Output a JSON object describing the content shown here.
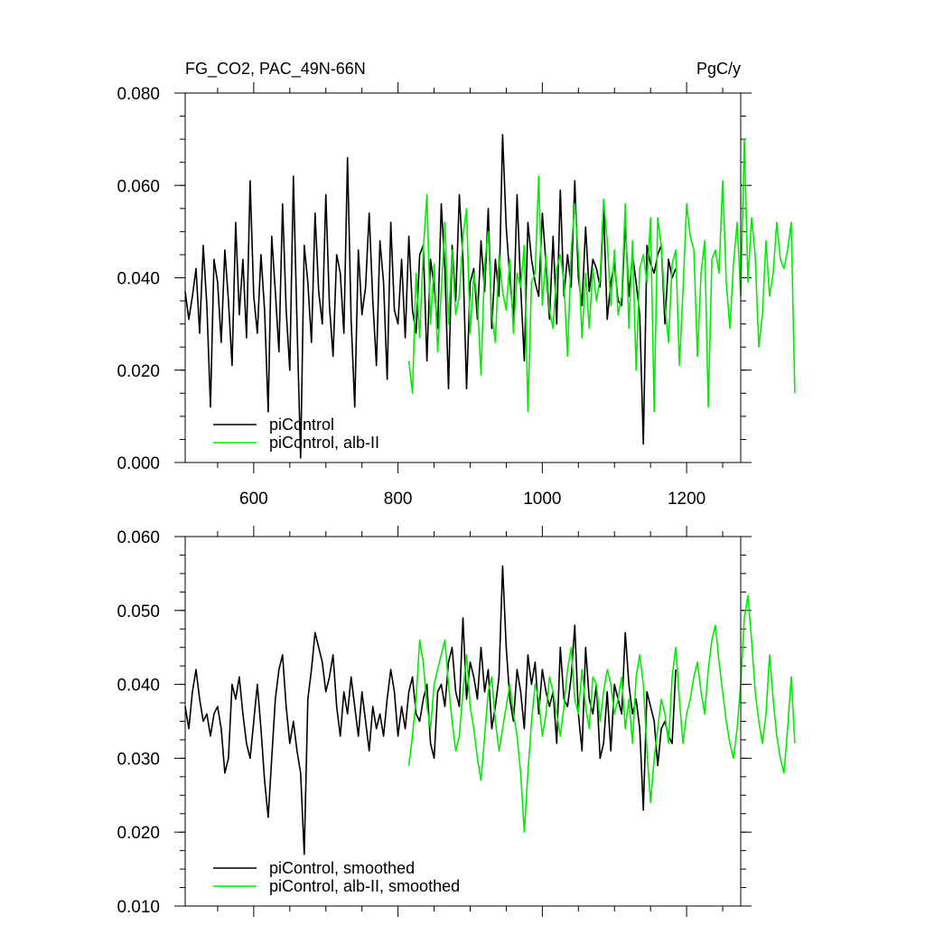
{
  "chart_data": [
    {
      "type": "line",
      "title": "FG_CO2, PAC_49N-66N",
      "units": "PgC/y",
      "xlim": [
        505,
        1275
      ],
      "ylim": [
        0.0,
        0.08
      ],
      "x_ticks": [
        600,
        800,
        1000,
        1200
      ],
      "x_tick_labels": [
        "600",
        "800",
        "1000",
        "1200"
      ],
      "y_ticks": [
        0.0,
        0.02,
        0.04,
        0.06,
        0.08
      ],
      "y_tick_labels": [
        "0.000",
        "0.020",
        "0.040",
        "0.060",
        "0.080"
      ],
      "legend_position": "bottom-left",
      "series": [
        {
          "name": "piControl",
          "color": "#000000",
          "x_start": 505,
          "x_step": 5,
          "values": [
            0.037,
            0.031,
            0.036,
            0.042,
            0.028,
            0.047,
            0.034,
            0.012,
            0.044,
            0.039,
            0.026,
            0.046,
            0.035,
            0.021,
            0.052,
            0.032,
            0.044,
            0.027,
            0.061,
            0.036,
            0.028,
            0.045,
            0.033,
            0.011,
            0.049,
            0.037,
            0.024,
            0.056,
            0.033,
            0.02,
            0.062,
            0.03,
            0.001,
            0.047,
            0.039,
            0.026,
            0.054,
            0.037,
            0.03,
            0.058,
            0.034,
            0.023,
            0.045,
            0.041,
            0.028,
            0.066,
            0.031,
            0.012,
            0.046,
            0.032,
            0.038,
            0.054,
            0.035,
            0.021,
            0.048,
            0.039,
            0.018,
            0.052,
            0.033,
            0.03,
            0.044,
            0.027,
            0.049,
            0.033,
            0.028,
            0.045,
            0.047,
            0.022,
            0.044,
            0.038,
            0.029,
            0.056,
            0.042,
            0.016,
            0.047,
            0.035,
            0.058,
            0.044,
            0.016,
            0.039,
            0.042,
            0.031,
            0.048,
            0.037,
            0.055,
            0.029,
            0.044,
            0.036,
            0.071,
            0.051,
            0.04,
            0.031,
            0.058,
            0.038,
            0.022,
            0.052,
            0.044,
            0.039,
            0.036,
            0.054,
            0.043,
            0.031,
            0.049,
            0.03,
            0.059,
            0.036,
            0.045,
            0.038,
            0.061,
            0.04,
            0.034,
            0.051,
            0.037,
            0.044,
            0.042,
            0.038,
            0.055,
            0.031,
            0.039,
            0.043,
            0.035,
            0.034,
            0.052,
            0.036,
            0.045,
            0.039,
            0.032,
            0.004,
            0.047,
            0.043,
            0.041,
            0.045,
            0.047,
            0.03,
            0.044,
            0.04,
            0.042
          ]
        },
        {
          "name": "piControl, alb-II",
          "color": "#00ee00",
          "x_start": 815,
          "x_step": 5,
          "values": [
            0.022,
            0.015,
            0.041,
            0.027,
            0.046,
            0.058,
            0.03,
            0.043,
            0.024,
            0.037,
            0.052,
            0.03,
            0.046,
            0.032,
            0.036,
            0.049,
            0.055,
            0.028,
            0.041,
            0.035,
            0.019,
            0.043,
            0.05,
            0.032,
            0.026,
            0.045,
            0.037,
            0.033,
            0.044,
            0.028,
            0.041,
            0.038,
            0.047,
            0.011,
            0.039,
            0.041,
            0.062,
            0.034,
            0.045,
            0.033,
            0.029,
            0.042,
            0.045,
            0.039,
            0.023,
            0.046,
            0.056,
            0.045,
            0.027,
            0.041,
            0.029,
            0.042,
            0.035,
            0.04,
            0.057,
            0.048,
            0.034,
            0.046,
            0.032,
            0.036,
            0.056,
            0.029,
            0.048,
            0.02,
            0.042,
            0.045,
            0.039,
            0.053,
            0.011,
            0.053,
            0.047,
            0.034,
            0.026,
            0.043,
            0.046,
            0.021,
            0.037,
            0.056,
            0.049,
            0.046,
            0.023,
            0.041,
            0.048,
            0.012,
            0.044,
            0.046,
            0.041,
            0.061,
            0.039,
            0.029,
            0.043,
            0.052,
            0.036,
            0.07,
            0.039,
            0.053,
            0.045,
            0.025,
            0.032,
            0.048,
            0.036,
            0.041,
            0.052,
            0.044,
            0.042,
            0.046,
            0.052,
            0.015
          ]
        }
      ]
    },
    {
      "type": "line",
      "title": "",
      "xlim": [
        505,
        1275
      ],
      "ylim": [
        0.01,
        0.06
      ],
      "x_ticks": [
        600,
        800,
        1000,
        1200
      ],
      "y_ticks": [
        0.01,
        0.02,
        0.03,
        0.04,
        0.05,
        0.06
      ],
      "y_tick_labels": [
        "0.010",
        "0.020",
        "0.030",
        "0.040",
        "0.050",
        "0.060"
      ],
      "legend_position": "bottom-left",
      "series": [
        {
          "name": "piControl, smoothed",
          "color": "#000000",
          "x_start": 505,
          "x_step": 5,
          "values": [
            0.037,
            0.034,
            0.039,
            0.042,
            0.038,
            0.035,
            0.036,
            0.033,
            0.036,
            0.037,
            0.034,
            0.028,
            0.03,
            0.04,
            0.038,
            0.041,
            0.036,
            0.032,
            0.03,
            0.035,
            0.04,
            0.034,
            0.027,
            0.022,
            0.03,
            0.038,
            0.042,
            0.044,
            0.037,
            0.032,
            0.035,
            0.031,
            0.028,
            0.017,
            0.038,
            0.042,
            0.047,
            0.045,
            0.043,
            0.039,
            0.041,
            0.044,
            0.037,
            0.033,
            0.039,
            0.036,
            0.041,
            0.037,
            0.033,
            0.039,
            0.035,
            0.031,
            0.037,
            0.034,
            0.036,
            0.033,
            0.038,
            0.042,
            0.039,
            0.033,
            0.037,
            0.034,
            0.039,
            0.041,
            0.036,
            0.035,
            0.038,
            0.04,
            0.032,
            0.03,
            0.039,
            0.04,
            0.037,
            0.043,
            0.045,
            0.039,
            0.037,
            0.049,
            0.038,
            0.043,
            0.041,
            0.038,
            0.045,
            0.039,
            0.042,
            0.034,
            0.037,
            0.041,
            0.056,
            0.045,
            0.038,
            0.035,
            0.042,
            0.039,
            0.034,
            0.044,
            0.04,
            0.043,
            0.036,
            0.042,
            0.039,
            0.037,
            0.039,
            0.032,
            0.045,
            0.038,
            0.037,
            0.041,
            0.048,
            0.036,
            0.031,
            0.045,
            0.038,
            0.036,
            0.04,
            0.03,
            0.032,
            0.039,
            0.031,
            0.04,
            0.038,
            0.036,
            0.047,
            0.04,
            0.036,
            0.038,
            0.034,
            0.023,
            0.039,
            0.037,
            0.035,
            0.029,
            0.034,
            0.035,
            0.033,
            0.032,
            0.042
          ]
        },
        {
          "name": "piControl, alb-II, smoothed",
          "color": "#00ee00",
          "x_start": 815,
          "x_step": 5,
          "values": [
            0.029,
            0.033,
            0.038,
            0.046,
            0.043,
            0.037,
            0.034,
            0.04,
            0.042,
            0.044,
            0.046,
            0.04,
            0.035,
            0.031,
            0.033,
            0.039,
            0.044,
            0.037,
            0.034,
            0.03,
            0.027,
            0.033,
            0.039,
            0.041,
            0.035,
            0.031,
            0.034,
            0.037,
            0.04,
            0.036,
            0.033,
            0.028,
            0.02,
            0.028,
            0.035,
            0.04,
            0.038,
            0.033,
            0.036,
            0.041,
            0.039,
            0.036,
            0.033,
            0.037,
            0.042,
            0.045,
            0.038,
            0.036,
            0.042,
            0.037,
            0.034,
            0.041,
            0.04,
            0.035,
            0.039,
            0.042,
            0.04,
            0.036,
            0.038,
            0.041,
            0.034,
            0.038,
            0.032,
            0.041,
            0.044,
            0.04,
            0.031,
            0.024,
            0.03,
            0.034,
            0.038,
            0.036,
            0.032,
            0.041,
            0.045,
            0.038,
            0.032,
            0.036,
            0.038,
            0.041,
            0.043,
            0.039,
            0.036,
            0.042,
            0.046,
            0.048,
            0.043,
            0.039,
            0.035,
            0.032,
            0.03,
            0.034,
            0.04,
            0.049,
            0.052,
            0.046,
            0.039,
            0.035,
            0.032,
            0.036,
            0.044,
            0.038,
            0.033,
            0.03,
            0.028,
            0.034,
            0.041,
            0.032
          ]
        }
      ]
    }
  ]
}
